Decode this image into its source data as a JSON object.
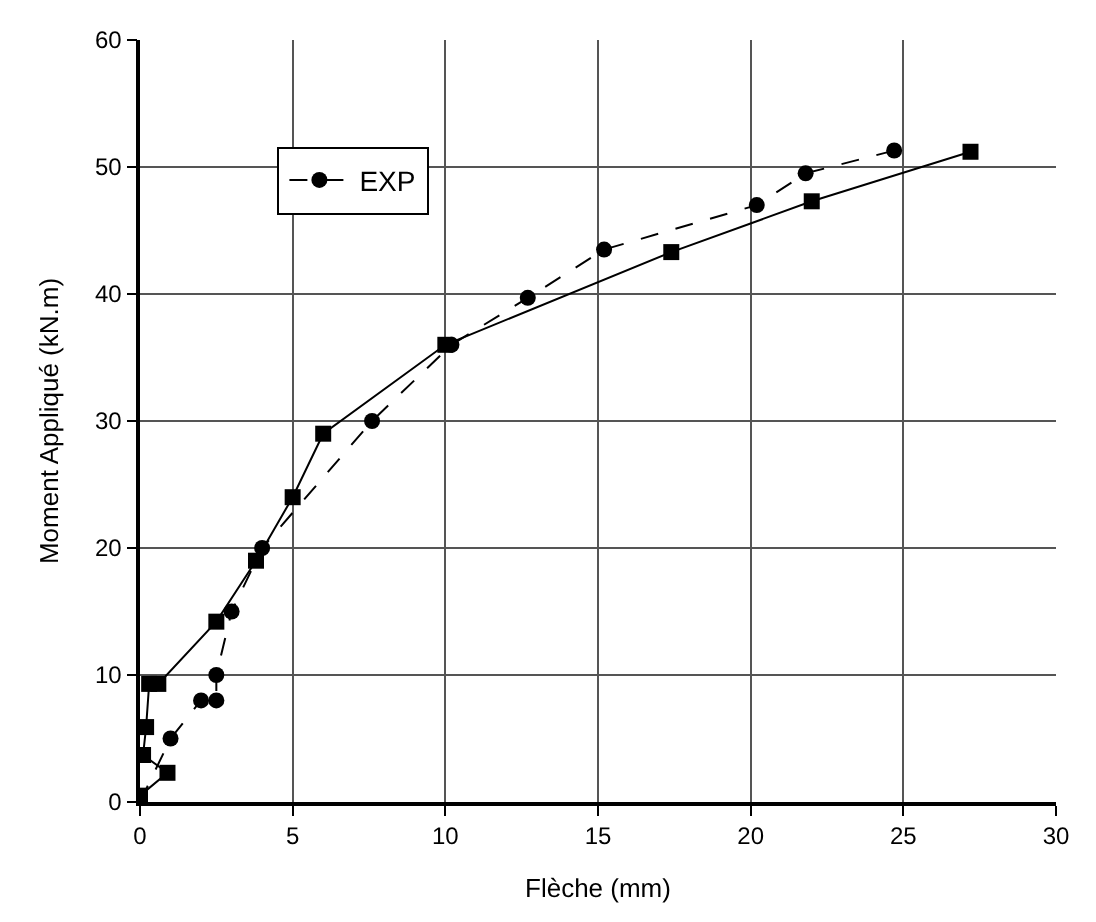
{
  "chart_data": {
    "type": "line",
    "xlabel": "Flèche (mm)",
    "ylabel": "Moment Appliqué (kN.m)",
    "xlim": [
      0,
      30
    ],
    "xticks": [
      0,
      5,
      10,
      15,
      20,
      25,
      30
    ],
    "ylim": [
      0,
      60
    ],
    "yticks": [
      0,
      10,
      20,
      30,
      40,
      50,
      60
    ],
    "grid": true,
    "legend": "top left",
    "series": [
      {
        "color": "#000000",
        "marker": "square",
        "line_style": "solid",
        "x": [
          0,
          0.9,
          0.1,
          0.2,
          0.3,
          0.6,
          2.5,
          3.8,
          5,
          6,
          10,
          17.4,
          22,
          27.2
        ],
        "values": [
          0.5,
          2.3,
          3.7,
          5.9,
          9.3,
          9.3,
          14.2,
          19,
          24,
          29,
          36,
          43.3,
          47.3,
          51.2
        ]
      },
      {
        "name": "EXP",
        "color": "#000000",
        "marker": "circle",
        "line_style": "dashed",
        "x": [
          0,
          1,
          2,
          2.5,
          2.5,
          3,
          4,
          7.6,
          10.2,
          12.7,
          15.2,
          20.2,
          21.8,
          24.7
        ],
        "values": [
          0,
          5,
          8,
          8,
          10,
          15,
          20,
          30,
          36,
          39.7,
          43.5,
          47,
          49.5,
          51.3
        ]
      }
    ]
  }
}
